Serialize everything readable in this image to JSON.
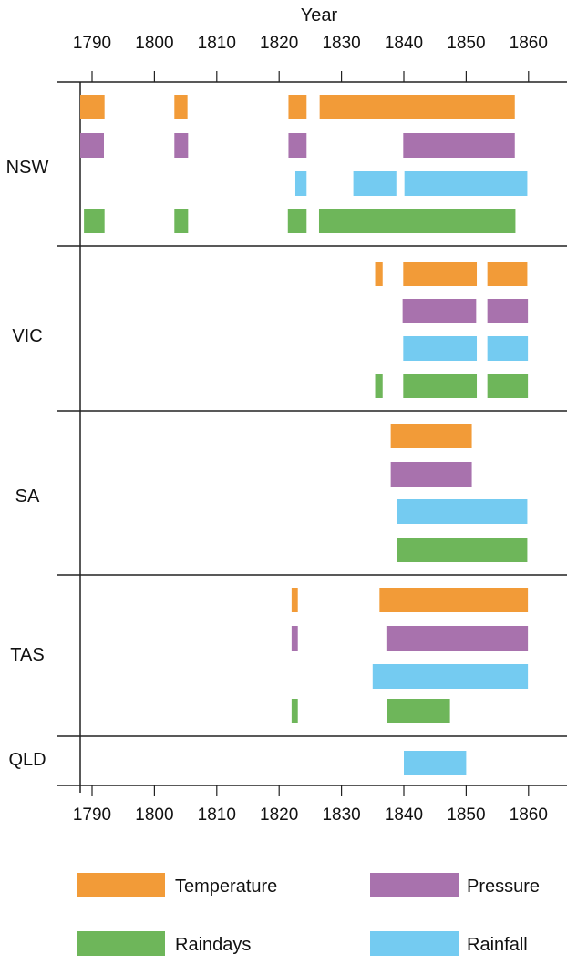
{
  "chart_data": {
    "type": "bar",
    "subtype": "timeline-gantt",
    "xlabel": "Year",
    "xlim": [
      1788.1,
      1866
    ],
    "xticks": [
      1790,
      1800,
      1810,
      1820,
      1830,
      1840,
      1850,
      1860
    ],
    "grid": false,
    "legend_position": "bottom",
    "colors": {
      "Temperature": "#f29b38",
      "Pressure": "#a872ad",
      "Rainfall": "#74cbf1",
      "Raindays": "#6eb65a"
    },
    "legend": [
      "Temperature",
      "Pressure",
      "Raindays",
      "Rainfall"
    ],
    "groups": [
      {
        "name": "NSW",
        "series": [
          {
            "name": "Temperature",
            "intervals": [
              [
                1788.1,
                1792
              ],
              [
                1803.2,
                1805.3
              ],
              [
                1821.5,
                1824.4
              ],
              [
                1826.5,
                1857.8
              ]
            ]
          },
          {
            "name": "Pressure",
            "intervals": [
              [
                1788.1,
                1791.9
              ],
              [
                1803.2,
                1805.4
              ],
              [
                1821.5,
                1824.4
              ],
              [
                1839.9,
                1857.8
              ]
            ]
          },
          {
            "name": "Rainfall",
            "intervals": [
              [
                1822.6,
                1824.4
              ],
              [
                1831.9,
                1838.8
              ],
              [
                1840.1,
                1859.8
              ]
            ]
          },
          {
            "name": "Raindays",
            "intervals": [
              [
                1788.7,
                1792
              ],
              [
                1803.2,
                1805.4
              ],
              [
                1821.4,
                1824.4
              ],
              [
                1826.4,
                1857.9
              ]
            ]
          }
        ]
      },
      {
        "name": "VIC",
        "series": [
          {
            "name": "Temperature",
            "intervals": [
              [
                1835.4,
                1836.6
              ],
              [
                1839.9,
                1851.7
              ],
              [
                1853.4,
                1859.8
              ]
            ]
          },
          {
            "name": "Pressure",
            "intervals": [
              [
                1839.8,
                1851.6
              ],
              [
                1853.4,
                1859.9
              ]
            ]
          },
          {
            "name": "Rainfall",
            "intervals": [
              [
                1839.9,
                1851.7
              ],
              [
                1853.4,
                1859.9
              ]
            ]
          },
          {
            "name": "Raindays",
            "intervals": [
              [
                1835.4,
                1836.6
              ],
              [
                1839.9,
                1851.7
              ],
              [
                1853.4,
                1859.9
              ]
            ]
          }
        ]
      },
      {
        "name": "SA",
        "series": [
          {
            "name": "Temperature",
            "intervals": [
              [
                1837.9,
                1850.9
              ]
            ]
          },
          {
            "name": "Pressure",
            "intervals": [
              [
                1837.9,
                1850.9
              ]
            ]
          },
          {
            "name": "Rainfall",
            "intervals": [
              [
                1838.9,
                1859.8
              ]
            ]
          },
          {
            "name": "Raindays",
            "intervals": [
              [
                1838.9,
                1859.8
              ]
            ]
          }
        ]
      },
      {
        "name": "TAS",
        "series": [
          {
            "name": "Temperature",
            "intervals": [
              [
                1822,
                1823
              ],
              [
                1836.1,
                1859.9
              ]
            ]
          },
          {
            "name": "Pressure",
            "intervals": [
              [
                1822,
                1823
              ],
              [
                1837.2,
                1859.9
              ]
            ]
          },
          {
            "name": "Rainfall",
            "intervals": [
              [
                1835,
                1859.9
              ]
            ]
          },
          {
            "name": "Raindays",
            "intervals": [
              [
                1822,
                1823
              ],
              [
                1837.3,
                1847.4
              ]
            ]
          }
        ]
      },
      {
        "name": "QLD",
        "series": [
          {
            "name": "Rainfall",
            "intervals": [
              [
                1840,
                1850
              ]
            ]
          }
        ]
      }
    ]
  }
}
